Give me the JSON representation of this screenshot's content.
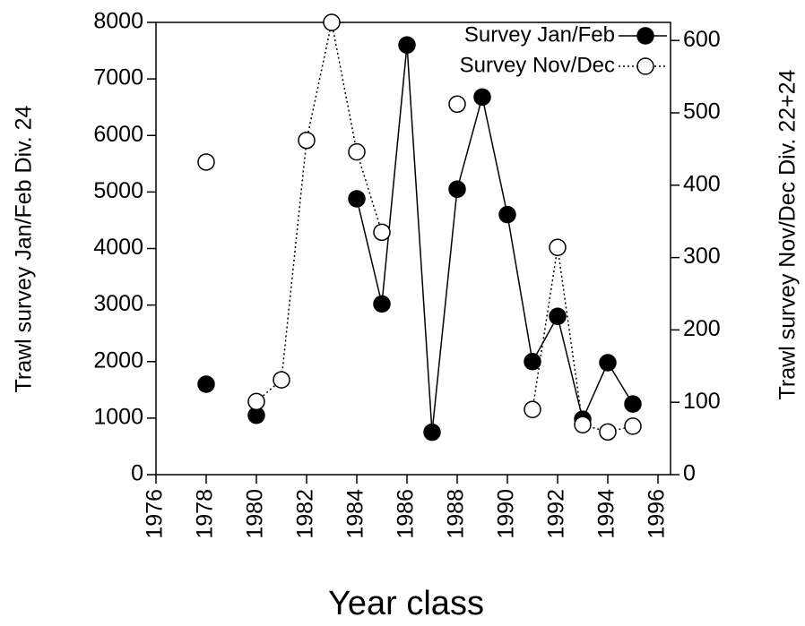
{
  "chart_data": {
    "type": "line",
    "xlabel": "Year class",
    "ylabel": "Trawl survey  Jan/Feb  Div. 24",
    "y2label": "Trawl survey Nov/Dec  Div. 22+24",
    "x": [
      1978,
      1979,
      1980,
      1981,
      1982,
      1983,
      1984,
      1985,
      1986,
      1987,
      1988,
      1989,
      1990,
      1991,
      1992,
      1993,
      1994,
      1995
    ],
    "series": [
      {
        "name": "Survey Jan/Feb",
        "color": "#000000",
        "marker": "filled",
        "linestyle": "solid",
        "values": [
          1600,
          null,
          1050,
          null,
          null,
          null,
          4880,
          3020,
          7600,
          750,
          5050,
          6680,
          4600,
          2000,
          2800,
          980,
          1980,
          1250
        ]
      },
      {
        "name": "Survey Nov/Dec",
        "color": "#000000",
        "marker": "open",
        "linestyle": "dotted",
        "axis": "y2",
        "values": [
          432,
          null,
          101,
          131,
          462,
          625,
          446,
          335,
          null,
          null,
          512,
          null,
          null,
          90,
          314,
          69,
          59,
          67
        ]
      }
    ],
    "xlim": [
      1976,
      1996.5
    ],
    "xticks": [
      1976,
      1978,
      1980,
      1982,
      1984,
      1986,
      1988,
      1990,
      1992,
      1994,
      1996
    ],
    "ylim": [
      0,
      8000
    ],
    "yticks": [
      0,
      1000,
      2000,
      3000,
      4000,
      5000,
      6000,
      7000,
      8000
    ],
    "y2lim": [
      0,
      625
    ],
    "y2ticks": [
      0,
      100,
      200,
      300,
      400,
      500,
      600
    ],
    "legend": "upper right"
  }
}
